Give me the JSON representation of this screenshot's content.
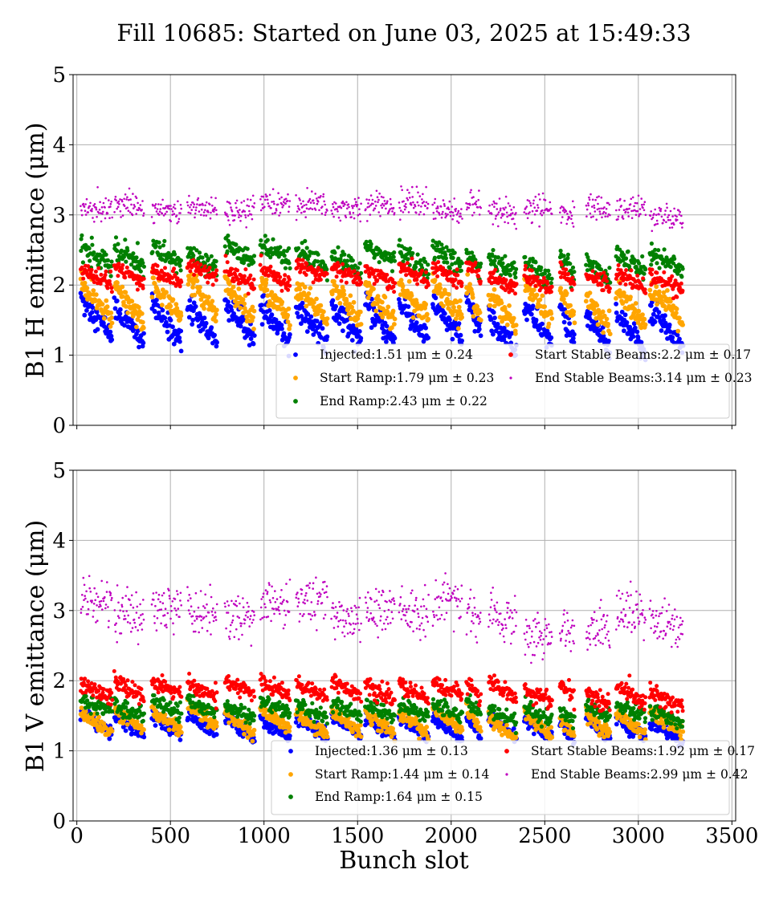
{
  "title": "Fill 10685: Started on June 03, 2025 at 15:49:33",
  "colors": {
    "injected": "#0000ff",
    "start_ramp": "#ffa500",
    "end_ramp": "#008000",
    "start_stable": "#ff0000",
    "end_stable": "#bf00bf"
  },
  "chart_data": [
    {
      "type": "scatter",
      "ylabel": "B1 H emittance (μm)",
      "xlabel": "",
      "xlim": [
        -20,
        3520
      ],
      "ylim": [
        0,
        5
      ],
      "xticks": [
        0,
        500,
        1000,
        1500,
        2000,
        2500,
        3000,
        3500
      ],
      "yticks": [
        0,
        1,
        2,
        3,
        4,
        5
      ],
      "show_xtick_labels": false,
      "grid": true,
      "legend_position": "lower-right",
      "series": [
        {
          "key": "injected",
          "name": "Injected:1.51 μm ± 0.24",
          "mean": 1.51,
          "std": 0.24
        },
        {
          "key": "start_ramp",
          "name": "Start Ramp:1.79 μm ± 0.23",
          "mean": 1.79,
          "std": 0.23
        },
        {
          "key": "end_ramp",
          "name": "End Ramp:2.43 μm ± 0.22",
          "mean": 2.43,
          "std": 0.22
        },
        {
          "key": "start_stable",
          "name": "Start Stable Beams:2.2 μm ± 0.17",
          "mean": 2.2,
          "std": 0.17
        },
        {
          "key": "end_stable",
          "name": "End Stable Beams:3.14 μm ± 0.23",
          "mean": 3.14,
          "std": 0.23
        }
      ]
    },
    {
      "type": "scatter",
      "ylabel": "B1 V emittance (μm)",
      "xlabel": "Bunch slot",
      "xlim": [
        -20,
        3520
      ],
      "ylim": [
        0,
        5
      ],
      "xticks": [
        0,
        500,
        1000,
        1500,
        2000,
        2500,
        3000,
        3500
      ],
      "yticks": [
        0,
        1,
        2,
        3,
        4,
        5
      ],
      "show_xtick_labels": true,
      "grid": true,
      "legend_position": "lower-right",
      "series": [
        {
          "key": "injected",
          "name": "Injected:1.36 μm ± 0.13",
          "mean": 1.36,
          "std": 0.13
        },
        {
          "key": "start_ramp",
          "name": "Start Ramp:1.44 μm ± 0.14",
          "mean": 1.44,
          "std": 0.14
        },
        {
          "key": "end_ramp",
          "name": "End Ramp:1.64 μm ± 0.15",
          "mean": 1.64,
          "std": 0.15
        },
        {
          "key": "start_stable",
          "name": "Start Stable Beams:1.92 μm ± 0.17",
          "mean": 1.92,
          "std": 0.17
        },
        {
          "key": "end_stable",
          "name": "End Stable Beams:2.99 μm ± 0.42",
          "mean": 2.99,
          "std": 0.42
        }
      ]
    }
  ]
}
